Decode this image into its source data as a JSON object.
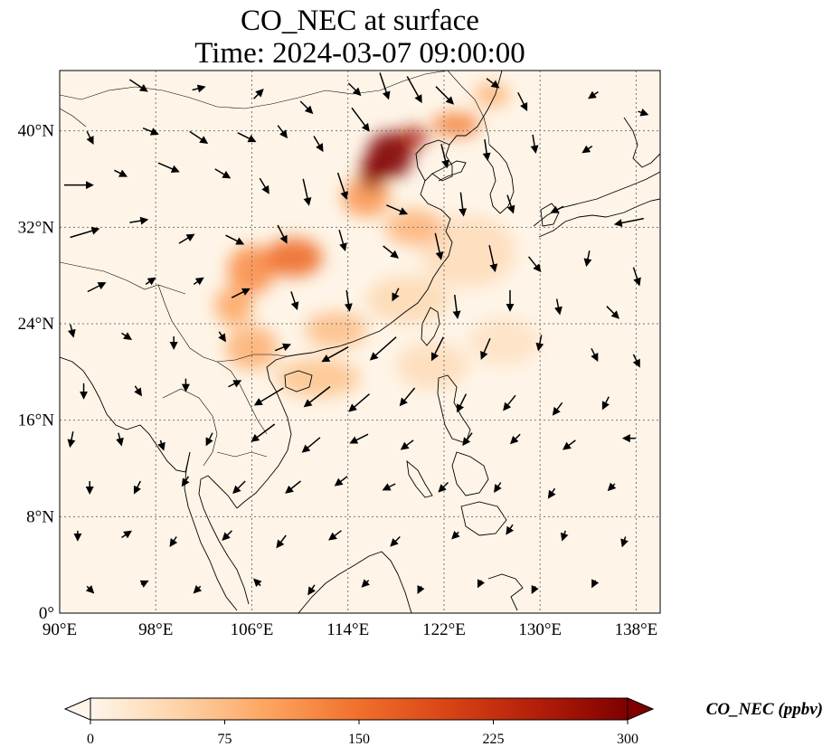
{
  "figure": {
    "title_line1": "CO_NEC at surface",
    "title_line2": "Time: 2024-03-07 09:00:00"
  },
  "map": {
    "lon_range": [
      90,
      140
    ],
    "lat_range": [
      0,
      45
    ],
    "x_ticks": [
      {
        "value": 90,
        "label": "90°E"
      },
      {
        "value": 98,
        "label": "98°E"
      },
      {
        "value": 106,
        "label": "106°E"
      },
      {
        "value": 114,
        "label": "114°E"
      },
      {
        "value": 122,
        "label": "122°E"
      },
      {
        "value": 130,
        "label": "130°E"
      },
      {
        "value": 138,
        "label": "138°E"
      }
    ],
    "y_ticks": [
      {
        "value": 0,
        "label": "0°"
      },
      {
        "value": 8,
        "label": "8°N"
      },
      {
        "value": 16,
        "label": "16°N"
      },
      {
        "value": 24,
        "label": "24°N"
      },
      {
        "value": 32,
        "label": "32°N"
      },
      {
        "value": 40,
        "label": "40°N"
      }
    ],
    "grid": true,
    "colors": {
      "background": "#fef5e8",
      "coastline": "#000000",
      "gridline": "#777777"
    },
    "plumes": [
      {
        "lon": 117.5,
        "lat": 38.0,
        "rlon": 1.9,
        "rlat": 1.9,
        "value": 300
      },
      {
        "lon": 116.0,
        "lat": 36.5,
        "rlon": 1.0,
        "rlat": 1.4,
        "value": 290
      },
      {
        "lon": 119.5,
        "lat": 39.5,
        "rlon": 1.2,
        "rlat": 0.8,
        "value": 250
      },
      {
        "lon": 123.0,
        "lat": 40.5,
        "rlon": 2.0,
        "rlat": 1.0,
        "value": 130
      },
      {
        "lon": 126.0,
        "lat": 43.0,
        "rlon": 1.5,
        "rlat": 1.0,
        "value": 80
      },
      {
        "lon": 115.5,
        "lat": 34.5,
        "rlon": 2.0,
        "rlat": 1.6,
        "value": 110
      },
      {
        "lon": 119.5,
        "lat": 32.0,
        "rlon": 2.4,
        "rlat": 1.5,
        "value": 80
      },
      {
        "lon": 109.5,
        "lat": 29.5,
        "rlon": 2.4,
        "rlat": 1.6,
        "value": 155
      },
      {
        "lon": 106.0,
        "lat": 28.5,
        "rlon": 2.0,
        "rlat": 2.0,
        "value": 120
      },
      {
        "lon": 104.5,
        "lat": 25.5,
        "rlon": 1.6,
        "rlat": 1.6,
        "value": 95
      },
      {
        "lon": 106.0,
        "lat": 22.0,
        "rlon": 2.2,
        "rlat": 1.8,
        "value": 85
      },
      {
        "lon": 111.5,
        "lat": 19.5,
        "rlon": 3.5,
        "rlat": 1.6,
        "value": 65
      },
      {
        "lon": 113.0,
        "lat": 23.5,
        "rlon": 2.6,
        "rlat": 1.5,
        "value": 70
      },
      {
        "lon": 119.0,
        "lat": 26.0,
        "rlon": 3.5,
        "rlat": 2.0,
        "value": 40
      },
      {
        "lon": 124.0,
        "lat": 30.0,
        "rlon": 4.0,
        "rlat": 3.0,
        "value": 35
      },
      {
        "lon": 121.0,
        "lat": 20.5,
        "rlon": 3.0,
        "rlat": 2.0,
        "value": 35
      },
      {
        "lon": 127.0,
        "lat": 22.5,
        "rlon": 3.0,
        "rlat": 2.0,
        "value": 28
      }
    ],
    "wind_vectors": [
      {
        "lon": 96.5,
        "lat": 43.8,
        "u": 0.6,
        "v": -0.4
      },
      {
        "lon": 101.5,
        "lat": 43.5,
        "u": 0.4,
        "v": 0.1
      },
      {
        "lon": 106.5,
        "lat": 43.0,
        "u": 0.3,
        "v": 0.3
      },
      {
        "lon": 110.5,
        "lat": 42.0,
        "u": 0.4,
        "v": -0.4
      },
      {
        "lon": 114.5,
        "lat": 43.5,
        "u": 0.4,
        "v": -0.4
      },
      {
        "lon": 117.0,
        "lat": 43.8,
        "u": 0.3,
        "v": -0.9
      },
      {
        "lon": 119.5,
        "lat": 43.5,
        "u": 0.5,
        "v": -0.9
      },
      {
        "lon": 122.0,
        "lat": 43.0,
        "u": 0.6,
        "v": -0.6
      },
      {
        "lon": 126.0,
        "lat": 44.0,
        "u": 0.4,
        "v": -0.3
      },
      {
        "lon": 128.5,
        "lat": 42.5,
        "u": 0.3,
        "v": -0.6
      },
      {
        "lon": 134.5,
        "lat": 43.0,
        "u": -0.3,
        "v": -0.2
      },
      {
        "lon": 138.5,
        "lat": 41.5,
        "u": 0.3,
        "v": -0.1
      },
      {
        "lon": 92.5,
        "lat": 39.5,
        "u": 0.2,
        "v": -0.4
      },
      {
        "lon": 97.5,
        "lat": 40.0,
        "u": 0.5,
        "v": -0.2
      },
      {
        "lon": 101.5,
        "lat": 39.5,
        "u": 0.6,
        "v": -0.4
      },
      {
        "lon": 105.5,
        "lat": 39.5,
        "u": 0.6,
        "v": -0.3
      },
      {
        "lon": 108.5,
        "lat": 40.0,
        "u": 0.3,
        "v": -0.4
      },
      {
        "lon": 111.5,
        "lat": 39.0,
        "u": 0.3,
        "v": -0.5
      },
      {
        "lon": 115.0,
        "lat": 41.0,
        "u": 0.6,
        "v": -0.8
      },
      {
        "lon": 122.0,
        "lat": 38.0,
        "u": 0.2,
        "v": -0.8
      },
      {
        "lon": 125.5,
        "lat": 38.5,
        "u": 0.1,
        "v": -0.7
      },
      {
        "lon": 129.5,
        "lat": 39.0,
        "u": 0.1,
        "v": -0.6
      },
      {
        "lon": 134.0,
        "lat": 38.5,
        "u": -0.3,
        "v": -0.2
      },
      {
        "lon": 91.5,
        "lat": 35.5,
        "u": 1.0,
        "v": 0.0
      },
      {
        "lon": 95.0,
        "lat": 36.5,
        "u": 0.4,
        "v": -0.2
      },
      {
        "lon": 99.0,
        "lat": 37.0,
        "u": 0.7,
        "v": -0.3
      },
      {
        "lon": 103.5,
        "lat": 36.5,
        "u": 0.5,
        "v": -0.3
      },
      {
        "lon": 107.0,
        "lat": 35.5,
        "u": 0.3,
        "v": -0.5
      },
      {
        "lon": 110.5,
        "lat": 35.0,
        "u": 0.2,
        "v": -0.9
      },
      {
        "lon": 113.5,
        "lat": 35.5,
        "u": 0.3,
        "v": -0.9
      },
      {
        "lon": 118.0,
        "lat": 33.5,
        "u": 0.7,
        "v": -0.3
      },
      {
        "lon": 123.5,
        "lat": 34.0,
        "u": 0.1,
        "v": -0.8
      },
      {
        "lon": 127.5,
        "lat": 34.0,
        "u": 0.2,
        "v": -0.6
      },
      {
        "lon": 131.5,
        "lat": 33.5,
        "u": -0.4,
        "v": -0.2
      },
      {
        "lon": 137.5,
        "lat": 32.5,
        "u": -1.0,
        "v": -0.2
      },
      {
        "lon": 92.0,
        "lat": 31.5,
        "u": 1.0,
        "v": 0.3
      },
      {
        "lon": 96.5,
        "lat": 32.5,
        "u": 0.6,
        "v": 0.1
      },
      {
        "lon": 100.5,
        "lat": 31.0,
        "u": 0.5,
        "v": 0.3
      },
      {
        "lon": 104.5,
        "lat": 31.0,
        "u": 0.6,
        "v": -0.3
      },
      {
        "lon": 108.5,
        "lat": 31.5,
        "u": 0.3,
        "v": -0.6
      },
      {
        "lon": 113.5,
        "lat": 31.0,
        "u": 0.2,
        "v": -0.7
      },
      {
        "lon": 117.5,
        "lat": 30.0,
        "u": 0.5,
        "v": -0.4
      },
      {
        "lon": 121.5,
        "lat": 30.5,
        "u": 0.2,
        "v": -0.9
      },
      {
        "lon": 126.0,
        "lat": 29.5,
        "u": 0.2,
        "v": -0.9
      },
      {
        "lon": 129.5,
        "lat": 29.0,
        "u": 0.4,
        "v": -0.5
      },
      {
        "lon": 134.0,
        "lat": 29.5,
        "u": -0.1,
        "v": -0.5
      },
      {
        "lon": 138.0,
        "lat": 28.0,
        "u": 0.2,
        "v": -0.6
      },
      {
        "lon": 93.0,
        "lat": 27.0,
        "u": 0.6,
        "v": 0.3
      },
      {
        "lon": 97.5,
        "lat": 27.5,
        "u": 0.3,
        "v": 0.2
      },
      {
        "lon": 101.5,
        "lat": 27.5,
        "u": 0.3,
        "v": 0.2
      },
      {
        "lon": 105.0,
        "lat": 26.5,
        "u": 0.6,
        "v": 0.3
      },
      {
        "lon": 109.5,
        "lat": 26.0,
        "u": 0.2,
        "v": -0.6
      },
      {
        "lon": 114.0,
        "lat": 26.0,
        "u": 0.1,
        "v": -0.7
      },
      {
        "lon": 118.0,
        "lat": 26.5,
        "u": -0.2,
        "v": -0.4
      },
      {
        "lon": 123.0,
        "lat": 25.5,
        "u": 0.1,
        "v": -0.8
      },
      {
        "lon": 127.5,
        "lat": 26.0,
        "u": 0.0,
        "v": -0.7
      },
      {
        "lon": 131.5,
        "lat": 25.5,
        "u": 0.1,
        "v": -0.5
      },
      {
        "lon": 136.0,
        "lat": 25.0,
        "u": 0.4,
        "v": -0.4
      },
      {
        "lon": 91.0,
        "lat": 23.5,
        "u": 0.1,
        "v": -0.4
      },
      {
        "lon": 95.5,
        "lat": 23.0,
        "u": 0.3,
        "v": -0.2
      },
      {
        "lon": 99.5,
        "lat": 22.5,
        "u": 0.0,
        "v": -0.4
      },
      {
        "lon": 103.5,
        "lat": 23.0,
        "u": 0.2,
        "v": -0.3
      },
      {
        "lon": 108.5,
        "lat": 22.0,
        "u": 0.5,
        "v": 0.2
      },
      {
        "lon": 113.0,
        "lat": 21.5,
        "u": -0.9,
        "v": -0.5
      },
      {
        "lon": 117.0,
        "lat": 22.0,
        "u": -0.9,
        "v": -0.8
      },
      {
        "lon": 121.5,
        "lat": 22.0,
        "u": -0.4,
        "v": -0.8
      },
      {
        "lon": 125.5,
        "lat": 22.0,
        "u": -0.3,
        "v": -0.7
      },
      {
        "lon": 130.0,
        "lat": 22.5,
        "u": -0.1,
        "v": -0.5
      },
      {
        "lon": 134.5,
        "lat": 21.5,
        "u": 0.2,
        "v": -0.4
      },
      {
        "lon": 138.0,
        "lat": 21.0,
        "u": 0.2,
        "v": -0.4
      },
      {
        "lon": 92.0,
        "lat": 18.5,
        "u": 0.0,
        "v": -0.5
      },
      {
        "lon": 96.5,
        "lat": 18.5,
        "u": 0.2,
        "v": -0.3
      },
      {
        "lon": 100.5,
        "lat": 19.0,
        "u": 0.0,
        "v": -0.4
      },
      {
        "lon": 104.5,
        "lat": 19.0,
        "u": 0.4,
        "v": 0.2
      },
      {
        "lon": 107.5,
        "lat": 18.0,
        "u": -1.0,
        "v": -0.6
      },
      {
        "lon": 111.5,
        "lat": 18.0,
        "u": -0.9,
        "v": -0.7
      },
      {
        "lon": 115.0,
        "lat": 17.5,
        "u": -0.7,
        "v": -0.6
      },
      {
        "lon": 119.0,
        "lat": 18.0,
        "u": -0.5,
        "v": -0.6
      },
      {
        "lon": 123.5,
        "lat": 17.5,
        "u": -0.3,
        "v": -0.6
      },
      {
        "lon": 127.5,
        "lat": 17.5,
        "u": -0.4,
        "v": -0.5
      },
      {
        "lon": 131.5,
        "lat": 17.0,
        "u": -0.3,
        "v": -0.4
      },
      {
        "lon": 135.5,
        "lat": 17.5,
        "u": -0.2,
        "v": -0.4
      },
      {
        "lon": 91.0,
        "lat": 14.5,
        "u": -0.1,
        "v": -0.5
      },
      {
        "lon": 95.0,
        "lat": 14.5,
        "u": 0.1,
        "v": -0.4
      },
      {
        "lon": 98.5,
        "lat": 14.0,
        "u": 0.1,
        "v": -0.3
      },
      {
        "lon": 102.5,
        "lat": 14.5,
        "u": -0.2,
        "v": -0.4
      },
      {
        "lon": 107.0,
        "lat": 15.0,
        "u": -0.8,
        "v": -0.6
      },
      {
        "lon": 111.0,
        "lat": 14.0,
        "u": -0.6,
        "v": -0.5
      },
      {
        "lon": 115.0,
        "lat": 14.5,
        "u": -0.6,
        "v": -0.3
      },
      {
        "lon": 119.0,
        "lat": 14.0,
        "u": -0.4,
        "v": -0.3
      },
      {
        "lon": 124.0,
        "lat": 14.5,
        "u": -0.3,
        "v": -0.4
      },
      {
        "lon": 128.0,
        "lat": 14.5,
        "u": -0.3,
        "v": -0.3
      },
      {
        "lon": 132.5,
        "lat": 14.0,
        "u": -0.4,
        "v": -0.3
      },
      {
        "lon": 137.5,
        "lat": 14.5,
        "u": -0.4,
        "v": 0.0
      },
      {
        "lon": 92.5,
        "lat": 10.5,
        "u": 0.0,
        "v": -0.4
      },
      {
        "lon": 96.5,
        "lat": 10.5,
        "u": -0.2,
        "v": -0.4
      },
      {
        "lon": 100.5,
        "lat": 11.0,
        "u": -0.2,
        "v": -0.3
      },
      {
        "lon": 105.0,
        "lat": 10.5,
        "u": -0.4,
        "v": -0.4
      },
      {
        "lon": 109.5,
        "lat": 10.5,
        "u": -0.5,
        "v": -0.4
      },
      {
        "lon": 113.5,
        "lat": 11.0,
        "u": -0.4,
        "v": -0.3
      },
      {
        "lon": 117.5,
        "lat": 10.5,
        "u": -0.4,
        "v": -0.2
      },
      {
        "lon": 122.0,
        "lat": 10.5,
        "u": -0.3,
        "v": -0.3
      },
      {
        "lon": 126.5,
        "lat": 10.5,
        "u": -0.2,
        "v": -0.3
      },
      {
        "lon": 131.0,
        "lat": 10.0,
        "u": -0.2,
        "v": -0.3
      },
      {
        "lon": 136.0,
        "lat": 10.5,
        "u": -0.2,
        "v": -0.2
      },
      {
        "lon": 91.5,
        "lat": 6.5,
        "u": 0.0,
        "v": -0.3
      },
      {
        "lon": 95.5,
        "lat": 6.5,
        "u": 0.3,
        "v": 0.2
      },
      {
        "lon": 99.5,
        "lat": 6.0,
        "u": -0.2,
        "v": -0.3
      },
      {
        "lon": 104.0,
        "lat": 6.5,
        "u": -0.3,
        "v": -0.3
      },
      {
        "lon": 108.5,
        "lat": 6.0,
        "u": -0.3,
        "v": -0.4
      },
      {
        "lon": 113.0,
        "lat": 6.5,
        "u": -0.4,
        "v": -0.3
      },
      {
        "lon": 118.0,
        "lat": 6.0,
        "u": -0.3,
        "v": -0.3
      },
      {
        "lon": 123.0,
        "lat": 6.5,
        "u": -0.2,
        "v": -0.2
      },
      {
        "lon": 127.5,
        "lat": 7.0,
        "u": -0.2,
        "v": -0.3
      },
      {
        "lon": 132.0,
        "lat": 6.5,
        "u": -0.1,
        "v": -0.3
      },
      {
        "lon": 137.0,
        "lat": 6.0,
        "u": -0.1,
        "v": -0.3
      },
      {
        "lon": 92.5,
        "lat": 2.0,
        "u": 0.2,
        "v": -0.2
      },
      {
        "lon": 97.0,
        "lat": 2.5,
        "u": 0.2,
        "v": 0.1
      },
      {
        "lon": 101.5,
        "lat": 2.0,
        "u": -0.2,
        "v": -0.2
      },
      {
        "lon": 106.5,
        "lat": 2.5,
        "u": -0.2,
        "v": 0.2
      },
      {
        "lon": 111.0,
        "lat": 2.0,
        "u": -0.2,
        "v": -0.3
      },
      {
        "lon": 115.5,
        "lat": 2.5,
        "u": -0.2,
        "v": -0.2
      },
      {
        "lon": 120.0,
        "lat": 2.0,
        "u": -0.1,
        "v": -0.2
      },
      {
        "lon": 125.0,
        "lat": 2.5,
        "u": -0.1,
        "v": -0.2
      },
      {
        "lon": 129.5,
        "lat": 2.0,
        "u": -0.1,
        "v": -0.2
      },
      {
        "lon": 134.5,
        "lat": 2.5,
        "u": -0.1,
        "v": -0.2
      }
    ]
  },
  "colorbar": {
    "label": "CO_NEC (ppbv)",
    "min": 0,
    "max": 300,
    "ticks": [
      {
        "value": 0,
        "label": "0"
      },
      {
        "value": 75,
        "label": "75"
      },
      {
        "value": 150,
        "label": "150"
      },
      {
        "value": 225,
        "label": "225"
      },
      {
        "value": 300,
        "label": "300"
      }
    ],
    "extend": "both",
    "colormap": [
      "#fff5eb",
      "#fdd3a7",
      "#fda35f",
      "#f0702b",
      "#d84415",
      "#b21e09",
      "#7f0000"
    ]
  }
}
